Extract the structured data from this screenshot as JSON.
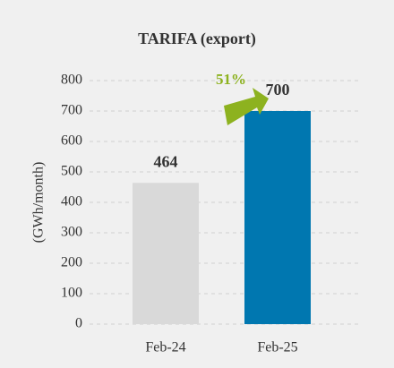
{
  "chart_data": {
    "type": "bar",
    "title": "TARIFA (export)",
    "ylabel": "(GWh/month)",
    "categories": [
      "Feb-24",
      "Feb-25"
    ],
    "values": [
      464,
      700
    ],
    "colors": [
      "#d9d9d9",
      "#0077b0"
    ],
    "annotation": "51%",
    "annotation_color": "#8db21f",
    "ylim": [
      0,
      800
    ],
    "yticks": [
      0,
      100,
      200,
      300,
      400,
      500,
      600,
      700,
      800
    ],
    "grid": true
  }
}
